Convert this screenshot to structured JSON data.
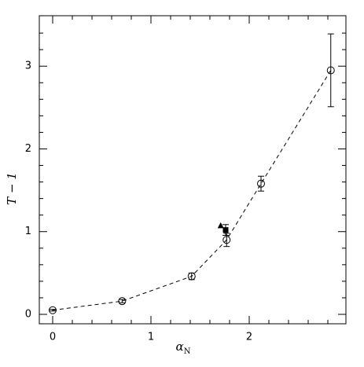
{
  "chart_data": {
    "type": "scatter",
    "xlabel": {
      "symbol": "α",
      "subscript": "N"
    },
    "ylabel": "T − 1",
    "xlim": [
      -0.136,
      2.984
    ],
    "ylim": [
      -0.114,
      3.61
    ],
    "xticks": [
      0,
      1,
      2
    ],
    "yticks": [
      0,
      1,
      2,
      3
    ],
    "xminorticks": [
      0.2,
      0.4,
      0.6,
      0.8,
      1.2,
      1.4,
      1.6,
      1.8,
      2.2,
      2.4,
      2.6,
      2.8
    ],
    "yminorticks": [
      0.2,
      0.4,
      0.6,
      0.8,
      1.2,
      1.4,
      1.6,
      1.8,
      2.2,
      2.4,
      2.6,
      2.8,
      3.2,
      3.4
    ],
    "series": [
      {
        "marker": "circle-open",
        "color": "#000000",
        "line": "dashed",
        "x": [
          0,
          0.707,
          1.414,
          1.77,
          2.12,
          2.83
        ],
        "values": [
          0.05,
          0.16,
          0.46,
          0.9,
          1.58,
          2.95
        ],
        "errors": [
          0.01,
          0.02,
          0.04,
          0.08,
          0.09,
          0.44
        ]
      },
      {
        "marker": "square-filled",
        "color": "#000000",
        "x": [
          1.76
        ],
        "values": [
          1.02
        ],
        "errors": [
          0.065
        ]
      },
      {
        "marker": "triangle-filled",
        "color": "#000000",
        "x": [
          1.71
        ],
        "values": [
          1.07
        ]
      }
    ]
  }
}
